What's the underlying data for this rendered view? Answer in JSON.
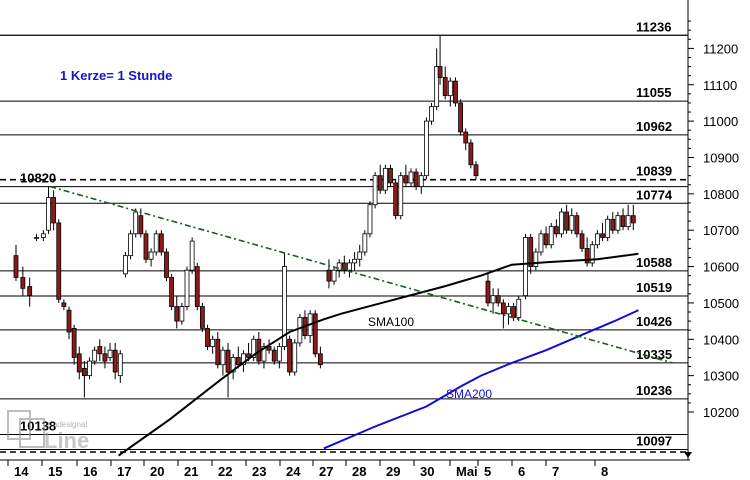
{
  "colors": {
    "up": "#ffffff",
    "down": "#8b1a1a",
    "wick": "#000000",
    "sma100": "#000000",
    "sma200": "#1010d0",
    "trendline": "#1e5a1e",
    "annotation": "#1515c8",
    "grid_dotted": "#000000"
  },
  "logo": {
    "text": "tradesignal online"
  },
  "chart_data": {
    "type": "candlestick",
    "title": "1 Kerze= 1 Stunde",
    "ylim": [
      10080,
      11250
    ],
    "y_ticks": [
      10200,
      10300,
      10400,
      10500,
      10600,
      10700,
      10800,
      10900,
      11000,
      11100,
      11200
    ],
    "x_tick_labels": [
      "14",
      "15",
      "16",
      "17",
      "20",
      "21",
      "22",
      "23",
      "24",
      "27",
      "28",
      "29",
      "30",
      "Mai",
      "5",
      "6",
      "7",
      "8"
    ],
    "levels": [
      {
        "value": 11236,
        "label": "11236",
        "style": "solid"
      },
      {
        "value": 11055,
        "label": "11055",
        "style": "solid"
      },
      {
        "value": 10962,
        "label": "10962",
        "style": "solid"
      },
      {
        "value": 10839,
        "label": "10839",
        "style": "dashed"
      },
      {
        "value": 10820,
        "label": "10820",
        "style": "solid",
        "label_left": true
      },
      {
        "value": 10774,
        "label": "10774",
        "style": "solid"
      },
      {
        "value": 10588,
        "label": "10588",
        "style": "solid"
      },
      {
        "value": 10519,
        "label": "10519",
        "style": "solid"
      },
      {
        "value": 10426,
        "label": "10426",
        "style": "solid"
      },
      {
        "value": 10335,
        "label": "10335",
        "style": "solid"
      },
      {
        "value": 10236,
        "label": "10236",
        "style": "solid"
      },
      {
        "value": 10138,
        "label": "10138",
        "style": "solid",
        "label_left": true
      },
      {
        "value": 10097,
        "label": "10097",
        "style": "solid"
      }
    ],
    "trendline": {
      "from": [
        1,
        10820
      ],
      "to": [
        19.2,
        10335
      ]
    },
    "sma100_label": "SMA100",
    "sma200_label": "SMA200",
    "sma100": [
      [
        3.0,
        10080
      ],
      [
        4.5,
        10180
      ],
      [
        6.0,
        10290
      ],
      [
        7.0,
        10360
      ],
      [
        8.0,
        10420
      ],
      [
        9.0,
        10455
      ],
      [
        9.5,
        10470
      ],
      [
        10.5,
        10495
      ],
      [
        11.5,
        10520
      ],
      [
        12.5,
        10545
      ],
      [
        13.6,
        10575
      ],
      [
        14.5,
        10605
      ],
      [
        15.5,
        10612
      ],
      [
        17.0,
        10620
      ],
      [
        18.2,
        10635
      ]
    ],
    "sma200": [
      [
        9.0,
        10100
      ],
      [
        10.5,
        10160
      ],
      [
        12.0,
        10215
      ],
      [
        13.0,
        10270
      ],
      [
        13.6,
        10300
      ],
      [
        14.5,
        10335
      ],
      [
        15.5,
        10370
      ],
      [
        16.5,
        10410
      ],
      [
        17.5,
        10450
      ],
      [
        18.2,
        10480
      ]
    ],
    "candles_hourly_approx": [
      [
        0.0,
        10630,
        10660,
        10560,
        10570
      ],
      [
        0.2,
        10570,
        10600,
        10520,
        10540
      ],
      [
        0.4,
        10545,
        10570,
        10490,
        10520
      ],
      [
        0.6,
        10680,
        10690,
        10670,
        10680
      ],
      [
        0.8,
        10680,
        10700,
        10670,
        10690
      ],
      [
        0.95,
        10700,
        10820,
        10690,
        10790
      ],
      [
        1.1,
        10790,
        10810,
        10700,
        10720
      ],
      [
        1.25,
        10720,
        10730,
        10500,
        10510
      ],
      [
        1.4,
        10500,
        10510,
        10480,
        10490
      ],
      [
        1.55,
        10480,
        10490,
        10400,
        10420
      ],
      [
        1.7,
        10430,
        10440,
        10330,
        10350
      ],
      [
        1.85,
        10360,
        10380,
        10290,
        10310
      ],
      [
        2.0,
        10320,
        10340,
        10240,
        10300
      ],
      [
        2.15,
        10300,
        10350,
        10290,
        10340
      ],
      [
        2.3,
        10340,
        10380,
        10330,
        10370
      ],
      [
        2.45,
        10380,
        10400,
        10340,
        10360
      ],
      [
        2.6,
        10360,
        10380,
        10320,
        10340
      ],
      [
        2.75,
        10350,
        10390,
        10340,
        10370
      ],
      [
        2.9,
        10370,
        10390,
        10290,
        10310
      ],
      [
        3.05,
        10300,
        10370,
        10280,
        10360
      ],
      [
        3.2,
        10580,
        10640,
        10570,
        10630
      ],
      [
        3.35,
        10630,
        10700,
        10620,
        10690
      ],
      [
        3.5,
        10690,
        10760,
        10680,
        10750
      ],
      [
        3.65,
        10740,
        10760,
        10680,
        10690
      ],
      [
        3.8,
        10690,
        10700,
        10610,
        10620
      ],
      [
        3.95,
        10620,
        10650,
        10600,
        10640
      ],
      [
        4.1,
        10640,
        10700,
        10630,
        10690
      ],
      [
        4.25,
        10690,
        10700,
        10630,
        10640
      ],
      [
        4.4,
        10640,
        10650,
        10560,
        10570
      ],
      [
        4.55,
        10570,
        10580,
        10480,
        10490
      ],
      [
        4.7,
        10490,
        10520,
        10430,
        10450
      ],
      [
        4.85,
        10450,
        10500,
        10440,
        10490
      ],
      [
        5.0,
        10490,
        10600,
        10480,
        10590
      ],
      [
        5.15,
        10590,
        10680,
        10580,
        10670
      ],
      [
        5.3,
        10600,
        10610,
        10480,
        10490
      ],
      [
        5.45,
        10490,
        10500,
        10420,
        10430
      ],
      [
        5.6,
        10430,
        10440,
        10370,
        10380
      ],
      [
        5.75,
        10380,
        10410,
        10360,
        10400
      ],
      [
        5.9,
        10400,
        10420,
        10320,
        10330
      ],
      [
        6.05,
        10330,
        10380,
        10300,
        10370
      ],
      [
        6.2,
        10370,
        10390,
        10240,
        10310
      ],
      [
        6.35,
        10310,
        10360,
        10290,
        10350
      ],
      [
        6.5,
        10350,
        10380,
        10320,
        10330
      ],
      [
        6.65,
        10330,
        10370,
        10310,
        10360
      ],
      [
        6.8,
        10360,
        10390,
        10340,
        10350
      ],
      [
        6.95,
        10350,
        10410,
        10340,
        10400
      ],
      [
        7.1,
        10400,
        10420,
        10330,
        10340
      ],
      [
        7.25,
        10340,
        10390,
        10320,
        10380
      ],
      [
        7.4,
        10380,
        10400,
        10360,
        10370
      ],
      [
        7.55,
        10370,
        10380,
        10330,
        10340
      ],
      [
        7.7,
        10340,
        10390,
        10320,
        10380
      ],
      [
        7.85,
        10380,
        10640,
        10370,
        10600
      ],
      [
        8.0,
        10400,
        10410,
        10300,
        10310
      ],
      [
        8.15,
        10310,
        10400,
        10300,
        10390
      ],
      [
        8.3,
        10390,
        10470,
        10380,
        10460
      ],
      [
        8.45,
        10460,
        10480,
        10400,
        10410
      ],
      [
        8.6,
        10410,
        10480,
        10390,
        10470
      ],
      [
        8.75,
        10470,
        10480,
        10350,
        10360
      ],
      [
        8.9,
        10360,
        10380,
        10320,
        10330
      ],
      [
        9.15,
        10590,
        10620,
        10540,
        10560
      ],
      [
        9.3,
        10560,
        10600,
        10550,
        10590
      ],
      [
        9.45,
        10590,
        10620,
        10570,
        10610
      ],
      [
        9.6,
        10610,
        10630,
        10580,
        10590
      ],
      [
        9.75,
        10590,
        10620,
        10570,
        10610
      ],
      [
        9.9,
        10610,
        10640,
        10590,
        10620
      ],
      [
        10.05,
        10620,
        10660,
        10600,
        10640
      ],
      [
        10.2,
        10640,
        10700,
        10630,
        10690
      ],
      [
        10.35,
        10690,
        10780,
        10680,
        10770
      ],
      [
        10.5,
        10770,
        10860,
        10760,
        10850
      ],
      [
        10.65,
        10850,
        10880,
        10800,
        10810
      ],
      [
        10.8,
        10810,
        10880,
        10800,
        10870
      ],
      [
        10.95,
        10870,
        10880,
        10820,
        10830
      ],
      [
        11.1,
        10830,
        10840,
        10730,
        10740
      ],
      [
        11.25,
        10740,
        10860,
        10730,
        10850
      ],
      [
        11.4,
        10850,
        10880,
        10820,
        10830
      ],
      [
        11.55,
        10830,
        10870,
        10820,
        10860
      ],
      [
        11.7,
        10860,
        10870,
        10810,
        10820
      ],
      [
        11.85,
        10820,
        10860,
        10800,
        10850
      ],
      [
        12.0,
        10850,
        11010,
        10840,
        11000
      ],
      [
        12.15,
        11000,
        11050,
        10990,
        11040
      ],
      [
        12.3,
        11040,
        11200,
        11030,
        11150
      ],
      [
        12.4,
        11150,
        11236,
        11100,
        11120
      ],
      [
        12.55,
        11120,
        11150,
        11060,
        11070
      ],
      [
        12.7,
        11070,
        11120,
        11040,
        11110
      ],
      [
        12.85,
        11110,
        11120,
        11040,
        11050
      ],
      [
        13.0,
        11050,
        11060,
        10960,
        10970
      ],
      [
        13.15,
        10970,
        10980,
        10920,
        10940
      ],
      [
        13.3,
        10940,
        10950,
        10870,
        10880
      ],
      [
        13.45,
        10880,
        10890,
        10840,
        10850
      ],
      [
        13.8,
        10560,
        10580,
        10490,
        10500
      ],
      [
        13.95,
        10500,
        10540,
        10470,
        10520
      ],
      [
        14.1,
        10520,
        10540,
        10490,
        10500
      ],
      [
        14.25,
        10500,
        10510,
        10430,
        10470
      ],
      [
        14.4,
        10470,
        10500,
        10440,
        10490
      ],
      [
        14.55,
        10490,
        10500,
        10450,
        10460
      ],
      [
        14.7,
        10460,
        10520,
        10450,
        10510
      ],
      [
        14.9,
        10520,
        10690,
        10510,
        10680
      ],
      [
        15.05,
        10680,
        10690,
        10580,
        10600
      ],
      [
        15.2,
        10600,
        10650,
        10590,
        10640
      ],
      [
        15.35,
        10640,
        10700,
        10630,
        10690
      ],
      [
        15.5,
        10690,
        10710,
        10650,
        10660
      ],
      [
        15.65,
        10660,
        10720,
        10650,
        10710
      ],
      [
        15.8,
        10710,
        10730,
        10680,
        10690
      ],
      [
        15.95,
        10690,
        10760,
        10680,
        10750
      ],
      [
        16.1,
        10750,
        10770,
        10690,
        10700
      ],
      [
        16.25,
        10700,
        10760,
        10690,
        10740
      ],
      [
        16.4,
        10740,
        10750,
        10680,
        10690
      ],
      [
        16.55,
        10690,
        10700,
        10640,
        10650
      ],
      [
        16.7,
        10650,
        10680,
        10600,
        10610
      ],
      [
        16.85,
        10610,
        10670,
        10600,
        10660
      ],
      [
        17.0,
        10660,
        10700,
        10650,
        10690
      ],
      [
        17.15,
        10690,
        10720,
        10670,
        10680
      ],
      [
        17.3,
        10680,
        10740,
        10670,
        10730
      ],
      [
        17.45,
        10730,
        10750,
        10690,
        10700
      ],
      [
        17.6,
        10700,
        10750,
        10690,
        10740
      ],
      [
        17.75,
        10740,
        10760,
        10700,
        10710
      ],
      [
        17.9,
        10710,
        10770,
        10700,
        10740
      ],
      [
        18.05,
        10740,
        10770,
        10700,
        10720
      ]
    ]
  }
}
